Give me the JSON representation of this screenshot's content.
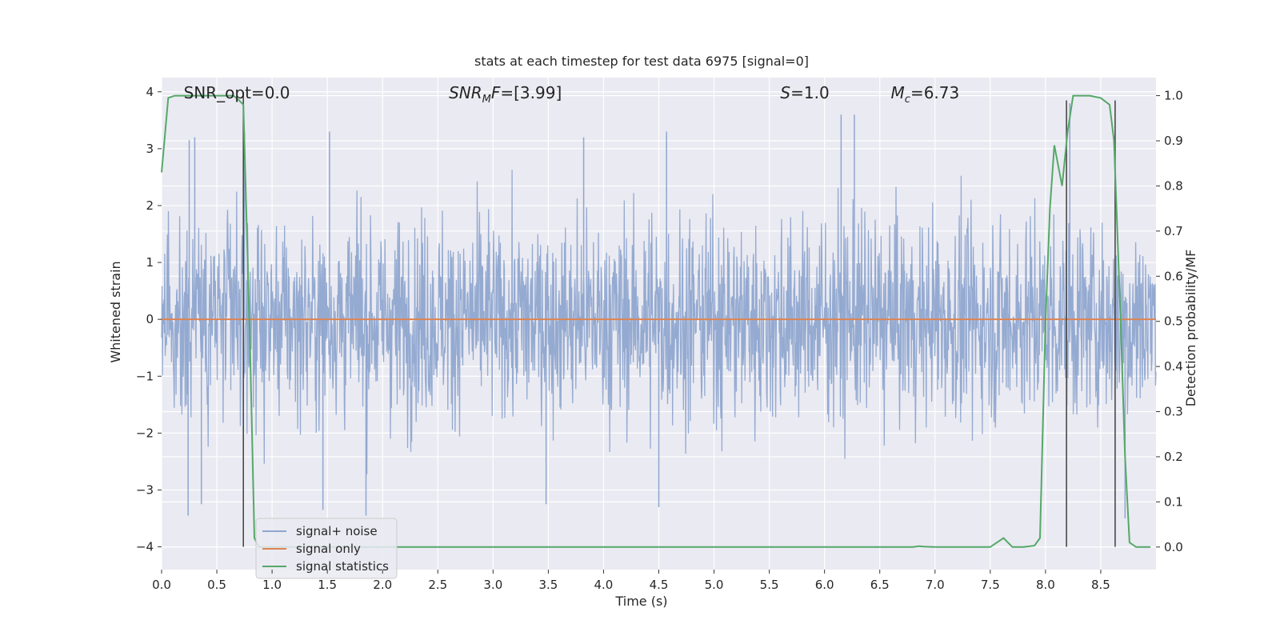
{
  "chart_data": {
    "type": "line",
    "title": "stats at each timestep for test data 6975 [signal=0]",
    "xlabel": "Time (s)",
    "ylabel_left": "Whitened strain",
    "ylabel_right": "Detection probability/MF",
    "xlim": [
      0.0,
      9.0
    ],
    "ylim_left": [
      -4.4,
      4.25
    ],
    "ylim_right": [
      -0.05,
      1.04
    ],
    "xticks": [
      0.0,
      0.5,
      1.0,
      1.5,
      2.0,
      2.5,
      3.0,
      3.5,
      4.0,
      4.5,
      5.0,
      5.5,
      6.0,
      6.5,
      7.0,
      7.5,
      8.0,
      8.5
    ],
    "xtick_labels": [
      "0.0",
      "0.5",
      "1.0",
      "1.5",
      "2.0",
      "2.5",
      "3.0",
      "3.5",
      "4.0",
      "4.5",
      "5.0",
      "5.5",
      "6.0",
      "6.5",
      "7.0",
      "7.5",
      "8.0",
      "8.5"
    ],
    "yticks_left": [
      -4,
      -3,
      -2,
      -1,
      0,
      1,
      2,
      3,
      4
    ],
    "ytick_labels_left": [
      "−4",
      "−3",
      "−2",
      "−1",
      "0",
      "1",
      "2",
      "3",
      "4"
    ],
    "yticks_right": [
      0.0,
      0.1,
      0.2,
      0.3,
      0.4,
      0.5,
      0.6,
      0.7,
      0.8,
      0.9,
      1.0
    ],
    "ytick_labels_right": [
      "0.0",
      "0.1",
      "0.2",
      "0.3",
      "0.4",
      "0.5",
      "0.6",
      "0.7",
      "0.8",
      "0.9",
      "1.0"
    ],
    "grid": true,
    "legend_position": "lower-left",
    "annotations": [
      {
        "html": "SNR_opt=0.0",
        "x": 0.2
      },
      {
        "html": "<tspan font-style='italic'>SNR</tspan><tspan font-style='italic' font-size='13' dy='5'>M</tspan><tspan font-style='italic' dy='-5'>F</tspan>=[3.99]",
        "x": 2.6
      },
      {
        "html": "<tspan font-style='italic'>S</tspan>=1.0",
        "x": 5.6
      },
      {
        "html": "<tspan font-style='italic'>M</tspan><tspan font-style='italic' font-size='13' dy='5'>c</tspan><tspan dy='-5'>=6.73</tspan>",
        "x": 6.6
      }
    ],
    "series": [
      {
        "name": "signal+ noise",
        "axis": "left",
        "color": "#8fa6cf",
        "description": "whitened strain noise, roughly Gaussian, amplitude mostly within ±2 with spikes up to ±3.5",
        "peak_spikes": [
          [
            0.25,
            3.15
          ],
          [
            0.3,
            3.2
          ],
          [
            0.75,
            3.3
          ],
          [
            1.52,
            3.3
          ],
          [
            3.82,
            3.2
          ],
          [
            4.57,
            3.3
          ],
          [
            6.15,
            3.6
          ],
          [
            6.27,
            3.6
          ],
          [
            8.22,
            3.8
          ],
          [
            0.24,
            -3.45
          ],
          [
            0.36,
            -3.25
          ],
          [
            1.46,
            -3.35
          ],
          [
            1.85,
            -3.45
          ],
          [
            3.48,
            -3.25
          ],
          [
            4.5,
            -3.3
          ],
          [
            8.72,
            -3.5
          ]
        ]
      },
      {
        "name": "signal only",
        "axis": "left",
        "color": "#dd8452",
        "x": [
          0.0,
          9.0
        ],
        "y": [
          0.0,
          0.0
        ]
      },
      {
        "name": "signal statistics",
        "axis": "right",
        "color": "#55a868",
        "x": [
          0.0,
          0.06,
          0.12,
          0.2,
          0.3,
          0.4,
          0.5,
          0.58,
          0.65,
          0.7,
          0.74,
          0.8,
          0.84,
          0.88,
          0.95,
          1.0,
          1.5,
          2.0,
          3.0,
          4.0,
          5.0,
          6.0,
          6.8,
          6.85,
          6.9,
          7.0,
          7.5,
          7.62,
          7.7,
          7.8,
          7.9,
          7.95,
          8.0,
          8.04,
          8.08,
          8.15,
          8.2,
          8.25,
          8.3,
          8.4,
          8.5,
          8.58,
          8.62,
          8.68,
          8.72,
          8.76,
          8.82,
          8.88,
          8.95
        ],
        "y": [
          0.83,
          0.995,
          1.0,
          1.0,
          1.0,
          1.0,
          1.0,
          1.0,
          1.0,
          0.99,
          0.98,
          0.45,
          0.02,
          0.0,
          0.0,
          0.0,
          0.0,
          0.0,
          0.0,
          0.0,
          0.0,
          0.0,
          0.0,
          0.002,
          0.001,
          0.0,
          0.0,
          0.02,
          0.0,
          0.0,
          0.003,
          0.02,
          0.5,
          0.75,
          0.89,
          0.8,
          0.92,
          1.0,
          1.0,
          1.0,
          0.995,
          0.98,
          0.9,
          0.5,
          0.2,
          0.01,
          0.0,
          0.0,
          0.0
        ]
      }
    ],
    "vertical_lines": {
      "color": "#4a4a4a",
      "segments": [
        {
          "x": 0.74,
          "y_from": -4.0,
          "y_to": 4.0
        },
        {
          "x": 8.19,
          "y_from": -4.0,
          "y_to": 3.85
        },
        {
          "x": 8.63,
          "y_from": -4.0,
          "y_to": 3.85
        }
      ]
    }
  }
}
